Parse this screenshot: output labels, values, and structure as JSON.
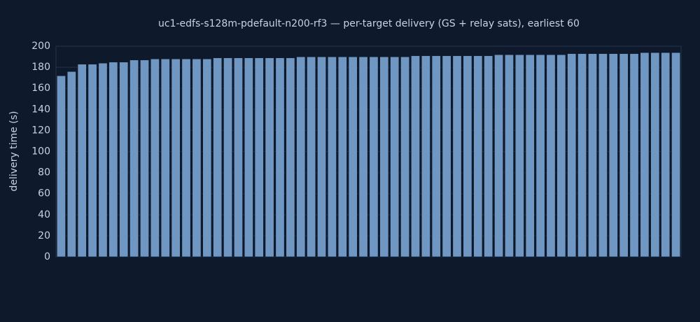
{
  "chart_data": {
    "type": "bar",
    "title": "uc1-edfs-s128m-pdefault-n200-rf3 — per-target delivery (GS + relay sats), earliest 60",
    "ylabel": "delivery time (s)",
    "categories": [
      null,
      null,
      null,
      null,
      null,
      null,
      null,
      null,
      null,
      null,
      null,
      null,
      null,
      null,
      null,
      null,
      null,
      null,
      null,
      null,
      null,
      null,
      null,
      null,
      null,
      null,
      null,
      null,
      null,
      null,
      null,
      null,
      null,
      null,
      null,
      null,
      null,
      null,
      null,
      null,
      null,
      null,
      null,
      null,
      null,
      null,
      null,
      null,
      null,
      null,
      null,
      null,
      null,
      null,
      null,
      null,
      null,
      null,
      null,
      null
    ],
    "values": [
      172,
      176,
      183,
      183,
      184,
      185,
      185,
      187,
      187,
      188,
      188,
      188,
      188,
      188,
      188,
      189,
      189,
      189,
      189,
      189,
      189,
      189,
      189,
      190,
      190,
      190,
      190,
      190,
      190,
      190,
      190,
      190,
      190,
      190,
      191,
      191,
      191,
      191,
      191,
      191,
      191,
      191,
      192,
      192,
      192,
      192,
      192,
      192,
      192,
      193,
      193,
      193,
      193,
      193,
      193,
      193,
      194,
      194,
      194,
      194
    ],
    "color": "#7096c2",
    "ylim": [
      0,
      200
    ],
    "yticks": [
      0,
      20,
      40,
      60,
      80,
      100,
      120,
      140,
      160,
      180,
      200
    ],
    "grid": true
  }
}
